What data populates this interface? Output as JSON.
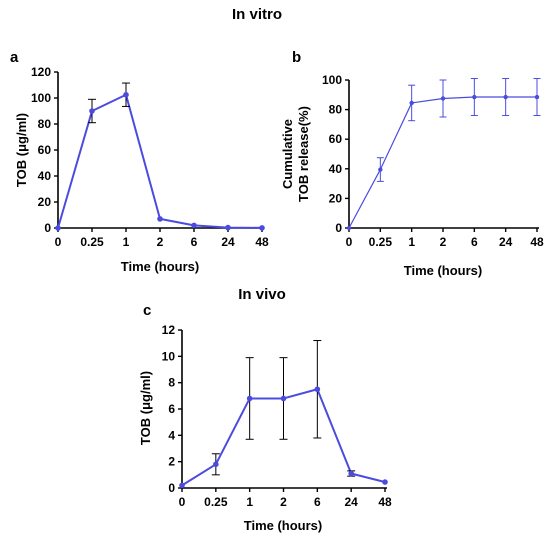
{
  "sections": {
    "in_vitro": "In vitro",
    "in_vivo": "In vivo"
  },
  "chart_data": [
    {
      "panel": "a",
      "type": "line",
      "categories": [
        "0",
        "0.25",
        "1",
        "2",
        "6",
        "24",
        "48"
      ],
      "series": [
        {
          "values": [
            0,
            90,
            102.5,
            7,
            2,
            0.3,
            0.1
          ],
          "errors": [
            0,
            9,
            9,
            0,
            0,
            0,
            0
          ],
          "color": "#4b4be0"
        }
      ],
      "xlabel": "Time (hours)",
      "ylabel": "TOB (μg/ml)",
      "ylim": [
        0,
        120
      ],
      "yticks": [
        0,
        20,
        40,
        60,
        80,
        100,
        120
      ],
      "error_bar_color": "#000000",
      "line_width": 2
    },
    {
      "panel": "b",
      "type": "line",
      "categories": [
        "0",
        "0.25",
        "1",
        "2",
        "6",
        "24",
        "48"
      ],
      "series": [
        {
          "values": [
            0,
            39.5,
            84.5,
            87.5,
            88.5,
            88.5,
            88.5
          ],
          "errors": [
            0,
            8,
            12,
            12.5,
            12.5,
            12.5,
            12.5
          ],
          "color": "#4b4be0"
        }
      ],
      "xlabel": "Time (hours)",
      "ylabel": "Cumulative\nTOB release(%)",
      "ylim": [
        0,
        100
      ],
      "yticks": [
        0,
        20,
        40,
        60,
        80,
        100
      ],
      "error_bar_color": "#4b4be0",
      "line_width": 1.2
    },
    {
      "panel": "c",
      "type": "line",
      "categories": [
        "0",
        "0.25",
        "1",
        "2",
        "6",
        "24",
        "48"
      ],
      "series": [
        {
          "values": [
            0.2,
            1.8,
            6.8,
            6.8,
            7.5,
            1.1,
            0.45
          ],
          "errors": [
            0,
            0.8,
            3.1,
            3.1,
            3.7,
            0.2,
            0
          ],
          "color": "#4b4be0"
        }
      ],
      "xlabel": "Time (hours)",
      "ylabel": "TOB (μg/ml)",
      "ylim": [
        0,
        12
      ],
      "yticks": [
        0,
        2,
        4,
        6,
        8,
        10,
        12
      ],
      "error_bar_color": "#000000",
      "line_width": 2
    }
  ]
}
